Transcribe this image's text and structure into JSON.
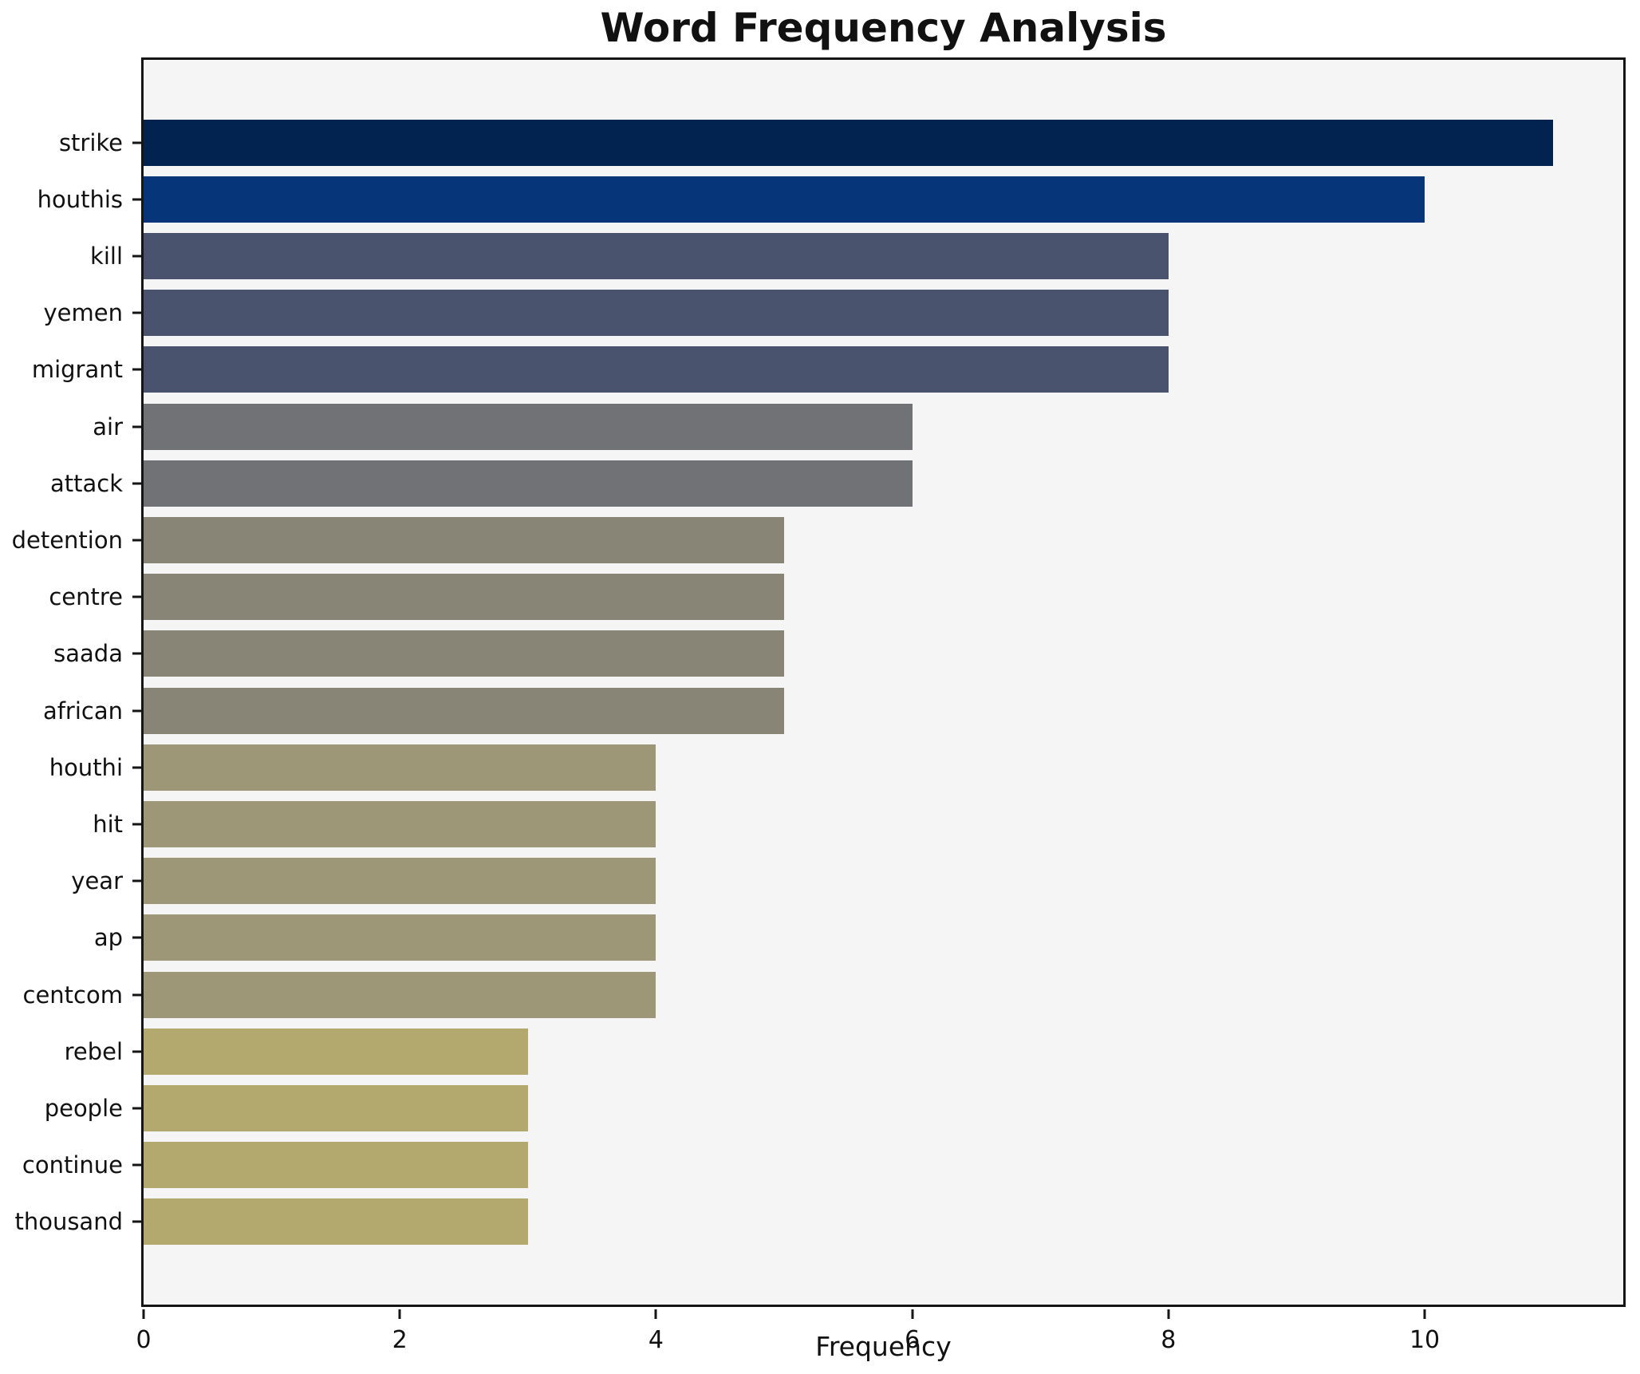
{
  "title": "Word Frequency Analysis",
  "chart_data": {
    "type": "bar",
    "orientation": "horizontal",
    "title": "Word Frequency Analysis",
    "xlabel": "Frequency",
    "ylabel": "",
    "categories": [
      "strike",
      "houthis",
      "kill",
      "yemen",
      "migrant",
      "air",
      "attack",
      "detention",
      "centre",
      "saada",
      "african",
      "houthi",
      "hit",
      "year",
      "ap",
      "centcom",
      "rebel",
      "people",
      "continue",
      "thousand"
    ],
    "values": [
      11,
      10,
      8,
      8,
      8,
      6,
      6,
      5,
      5,
      5,
      5,
      4,
      4,
      4,
      4,
      4,
      3,
      3,
      3,
      3
    ],
    "bar_colors": [
      "#02234f",
      "#07357a",
      "#4a536e",
      "#4a536e",
      "#4a536e",
      "#717276",
      "#717276",
      "#888576",
      "#888576",
      "#888576",
      "#888576",
      "#9e9777",
      "#9e9777",
      "#9e9777",
      "#9e9777",
      "#9e9777",
      "#b3a96e",
      "#b3a96e",
      "#b3a96e",
      "#b3a96e"
    ],
    "xlim": [
      0,
      11.55
    ],
    "xticks": [
      0,
      2,
      4,
      6,
      8,
      10
    ],
    "grid": false,
    "legend": false,
    "plot_bg": "#f5f5f6",
    "fig_bg": "#ffffff",
    "spine_color": "#151515",
    "colormap": "cividis_reversed"
  }
}
